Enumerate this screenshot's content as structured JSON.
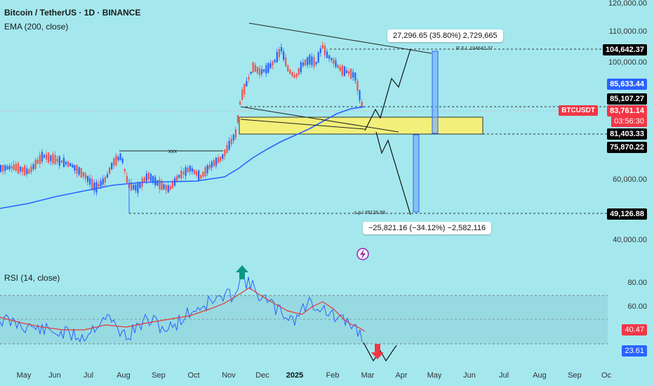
{
  "header": {
    "symbol_title": "Bitcoin / TetherUS · 1D · BINANCE",
    "indicator": "EMA (200, close)",
    "rsi_indicator": "RSI (14, close)"
  },
  "price_axis": {
    "ticks": [
      "120,000.00",
      "110,000.00",
      "100,000.00",
      "60,000.00",
      "40,000.00"
    ],
    "tags": {
      "resistance": "104,642.37",
      "ema": "85,633.44",
      "level_85107": "85,107.27",
      "symbol": "BTCUSDT",
      "last_price": "83,761.14",
      "countdown": "03:56:30",
      "level_81403": "81,403.33",
      "level_75870": "75,870.22",
      "support": "49,126.88"
    }
  },
  "rsi_axis": {
    "ticks": [
      "80.00",
      "60.00"
    ],
    "tags": {
      "upper": "40.47",
      "lower": "23.61"
    }
  },
  "time_axis": {
    "labels": [
      "May",
      "Jun",
      "Jul",
      "Aug",
      "Sep",
      "Oct",
      "Nov",
      "Dec",
      "2025",
      "Feb",
      "Mar",
      "Apr",
      "May",
      "Jun",
      "Jul",
      "Aug",
      "Sep",
      "Oc"
    ]
  },
  "annotations": {
    "target_up": "27,296.65 (35.80%) 2,729,665",
    "target_down": "−25,821.16 (−34.12%) −2,582,116",
    "resistance_label": "R S L 104642.37",
    "support_label": "s p l 49126.88",
    "range_label": "xxx"
  },
  "colors": {
    "background": "#a4e8ee",
    "bull_candle": "#2962ff",
    "bear_candle": "#ef5350",
    "ema_line": "#2962ff",
    "zone": "#f2f07a",
    "rsi_line": "#2962ff",
    "rsi_ma": "#e53935",
    "tag_red": "#f23645",
    "tag_blue": "#2962ff",
    "tag_black": "#000000",
    "arrow_up": "#089981",
    "arrow_down": "#f23645"
  },
  "icons": {
    "lightning": "lightning-icon",
    "arrow_up": "up-arrow-icon",
    "arrow_down": "down-arrow-icon"
  }
}
